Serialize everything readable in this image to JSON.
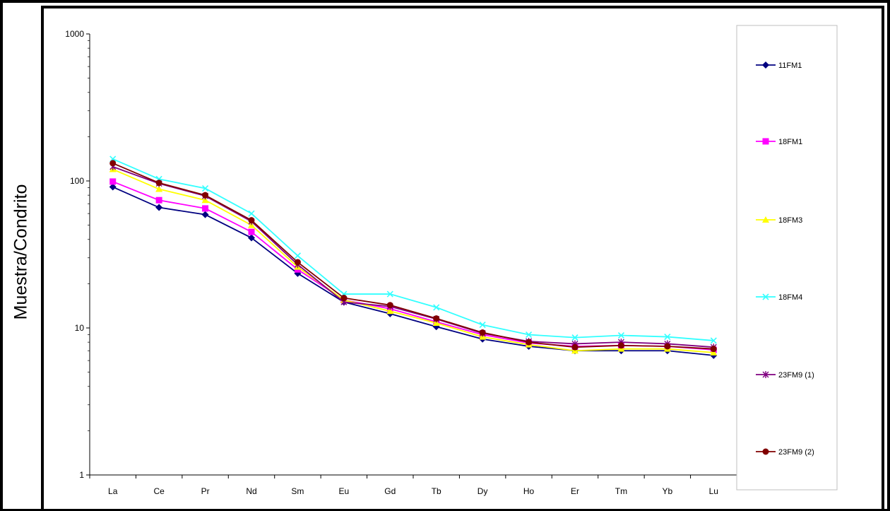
{
  "chart_data": {
    "type": "line",
    "ylabel": "Muestra/Condrito",
    "xlabel": "",
    "title": "",
    "y_scale": "log",
    "ylim": [
      1,
      1000
    ],
    "y_ticks": [
      "1",
      "10",
      "100",
      "1000"
    ],
    "grid": false,
    "legend_position": "right",
    "categories": [
      "La",
      "Ce",
      "Pr",
      "Nd",
      "Sm",
      "Eu",
      "Gd",
      "Tb",
      "Dy",
      "Ho",
      "Er",
      "Tm",
      "Yb",
      "Lu"
    ],
    "series": [
      {
        "name": "11FM1",
        "color": "#000080",
        "marker": "diamond",
        "values": [
          91,
          66,
          59,
          41,
          23.5,
          15,
          12.5,
          10.2,
          8.4,
          7.5,
          7.0,
          7.0,
          7.0,
          6.5
        ]
      },
      {
        "name": "18FM1",
        "color": "#ff00ff",
        "marker": "square",
        "values": [
          99,
          74,
          65,
          45,
          25,
          15.5,
          13.5,
          11,
          9.0,
          7.9,
          7.5,
          7.6,
          7.5,
          7.1
        ]
      },
      {
        "name": "18FM3",
        "color": "#ffff00",
        "marker": "triangle",
        "values": [
          120,
          88,
          74,
          50,
          26,
          15.5,
          13,
          10.8,
          8.7,
          7.7,
          7.0,
          7.2,
          7.2,
          6.8
        ]
      },
      {
        "name": "18FM4",
        "color": "#33ffff",
        "marker": "x",
        "values": [
          141,
          103,
          89,
          60,
          31,
          17,
          17,
          13.8,
          10.5,
          9.0,
          8.6,
          8.9,
          8.7,
          8.2
        ]
      },
      {
        "name": "23FM9 (1)",
        "color": "#800080",
        "marker": "star",
        "values": [
          125,
          96,
          79,
          53,
          27,
          15,
          14,
          11.5,
          9.2,
          8.1,
          7.8,
          8.0,
          7.8,
          7.4
        ]
      },
      {
        "name": "23FM9 (2)",
        "color": "#800000",
        "marker": "circle",
        "values": [
          132,
          97,
          80,
          54,
          28,
          16,
          14.3,
          11.6,
          9.3,
          8.0,
          7.4,
          7.6,
          7.5,
          7.2
        ]
      }
    ]
  }
}
